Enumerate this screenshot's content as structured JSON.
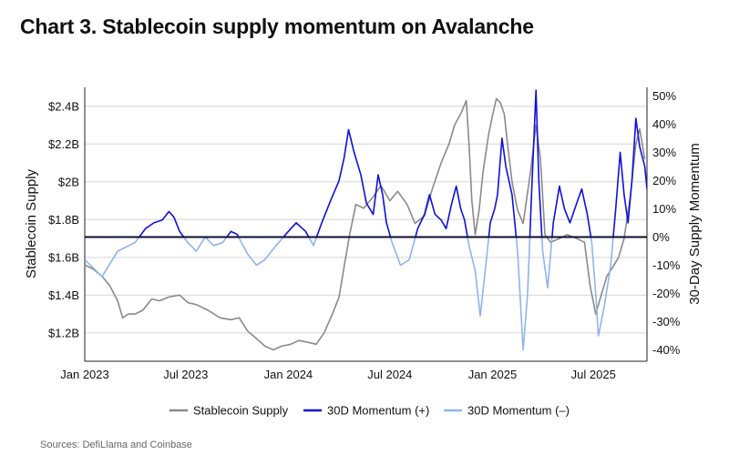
{
  "title": "Chart 3. Stablecoin supply momentum on Avalanche",
  "source": "Sources: DefiLlama and Coinbase",
  "colors": {
    "supply": "#8a8a8a",
    "momentum_pos": "#1010dc",
    "momentum_neg": "#8fb4ef",
    "zero_line": "#0d0d33",
    "grid": "#d6d6d6"
  },
  "chart_data": {
    "type": "line",
    "title": "Chart 3. Stablecoin supply momentum on Avalanche",
    "xlabel": "",
    "ylabel": "Stablecoin Supply",
    "y2label": "30-Day Supply Momentum",
    "x_ticks": [
      "Jan 2023",
      "Jul 2023",
      "Jan 2024",
      "Jul 2024",
      "Jan 2025",
      "Jul 2025"
    ],
    "y_ticks": [
      "$1.2B",
      "$1.4B",
      "$1.6B",
      "$1.8B",
      "$2B",
      "$2.2B",
      "$2.4B"
    ],
    "y2_ticks": [
      "-40%",
      "-30%",
      "-20%",
      "-10%",
      "0%",
      "10%",
      "20%",
      "30%",
      "40%",
      "50%"
    ],
    "x_range": [
      "2023-01-01",
      "2025-10-05"
    ],
    "ylim": [
      1.05,
      2.5
    ],
    "y2lim": [
      -44,
      53
    ],
    "grid": true,
    "legend_position": "bottom",
    "series": [
      {
        "name": "Stablecoin Supply",
        "axis": "left",
        "unit": "$B",
        "points": [
          [
            "2023-01-01",
            1.56
          ],
          [
            "2023-01-15",
            1.54
          ],
          [
            "2023-02-01",
            1.5
          ],
          [
            "2023-02-15",
            1.45
          ],
          [
            "2023-03-01",
            1.37
          ],
          [
            "2023-03-10",
            1.28
          ],
          [
            "2023-03-20",
            1.3
          ],
          [
            "2023-04-01",
            1.3
          ],
          [
            "2023-04-15",
            1.32
          ],
          [
            "2023-05-01",
            1.38
          ],
          [
            "2023-05-15",
            1.37
          ],
          [
            "2023-06-01",
            1.39
          ],
          [
            "2023-06-20",
            1.4
          ],
          [
            "2023-07-05",
            1.36
          ],
          [
            "2023-07-20",
            1.35
          ],
          [
            "2023-08-10",
            1.32
          ],
          [
            "2023-09-01",
            1.28
          ],
          [
            "2023-09-20",
            1.27
          ],
          [
            "2023-10-05",
            1.28
          ],
          [
            "2023-10-20",
            1.21
          ],
          [
            "2023-11-05",
            1.17
          ],
          [
            "2023-11-20",
            1.13
          ],
          [
            "2023-12-05",
            1.11
          ],
          [
            "2023-12-20",
            1.13
          ],
          [
            "2024-01-05",
            1.14
          ],
          [
            "2024-01-20",
            1.16
          ],
          [
            "2024-02-05",
            1.15
          ],
          [
            "2024-02-20",
            1.14
          ],
          [
            "2024-03-05",
            1.2
          ],
          [
            "2024-03-20",
            1.3
          ],
          [
            "2024-04-01",
            1.39
          ],
          [
            "2024-04-10",
            1.55
          ],
          [
            "2024-04-20",
            1.72
          ],
          [
            "2024-05-01",
            1.88
          ],
          [
            "2024-05-15",
            1.86
          ],
          [
            "2024-06-01",
            1.92
          ],
          [
            "2024-06-15",
            1.98
          ],
          [
            "2024-07-01",
            1.9
          ],
          [
            "2024-07-15",
            1.95
          ],
          [
            "2024-08-01",
            1.88
          ],
          [
            "2024-08-15",
            1.78
          ],
          [
            "2024-09-01",
            1.82
          ],
          [
            "2024-09-15",
            1.96
          ],
          [
            "2024-10-01",
            2.1
          ],
          [
            "2024-10-15",
            2.2
          ],
          [
            "2024-10-25",
            2.3
          ],
          [
            "2024-11-05",
            2.36
          ],
          [
            "2024-11-15",
            2.43
          ],
          [
            "2024-11-20",
            2.2
          ],
          [
            "2024-11-25",
            1.9
          ],
          [
            "2024-12-01",
            1.72
          ],
          [
            "2024-12-08",
            1.85
          ],
          [
            "2024-12-15",
            2.05
          ],
          [
            "2024-12-25",
            2.25
          ],
          [
            "2025-01-01",
            2.35
          ],
          [
            "2025-01-08",
            2.44
          ],
          [
            "2025-01-15",
            2.42
          ],
          [
            "2025-01-22",
            2.36
          ],
          [
            "2025-01-28",
            2.2
          ],
          [
            "2025-02-05",
            2.0
          ],
          [
            "2025-02-15",
            1.85
          ],
          [
            "2025-02-25",
            1.78
          ],
          [
            "2025-03-10",
            2.05
          ],
          [
            "2025-03-20",
            2.3
          ],
          [
            "2025-03-28",
            2.12
          ],
          [
            "2025-04-05",
            1.72
          ],
          [
            "2025-04-15",
            1.68
          ],
          [
            "2025-05-01",
            1.7
          ],
          [
            "2025-05-15",
            1.72
          ],
          [
            "2025-06-01",
            1.7
          ],
          [
            "2025-06-15",
            1.68
          ],
          [
            "2025-06-25",
            1.45
          ],
          [
            "2025-07-05",
            1.3
          ],
          [
            "2025-07-15",
            1.4
          ],
          [
            "2025-07-25",
            1.5
          ],
          [
            "2025-08-05",
            1.55
          ],
          [
            "2025-08-15",
            1.6
          ],
          [
            "2025-08-25",
            1.7
          ],
          [
            "2025-09-05",
            1.92
          ],
          [
            "2025-09-15",
            2.2
          ],
          [
            "2025-09-22",
            2.28
          ],
          [
            "2025-10-01",
            2.12
          ]
        ]
      },
      {
        "name": "30D Momentum (+)",
        "axis": "right",
        "unit": "%",
        "points": [
          [
            "2023-01-01",
            -8
          ],
          [
            "2023-02-01",
            -14
          ],
          [
            "2023-03-01",
            -5
          ],
          [
            "2023-04-01",
            -2
          ],
          [
            "2023-04-20",
            3
          ],
          [
            "2023-05-05",
            5
          ],
          [
            "2023-05-20",
            6
          ],
          [
            "2023-06-01",
            9
          ],
          [
            "2023-06-10",
            7
          ],
          [
            "2023-06-20",
            2
          ],
          [
            "2023-07-05",
            -2
          ],
          [
            "2023-07-20",
            -5
          ],
          [
            "2023-08-05",
            0
          ],
          [
            "2023-08-20",
            -3
          ],
          [
            "2023-09-05",
            -2
          ],
          [
            "2023-09-20",
            2
          ],
          [
            "2023-10-01",
            1
          ],
          [
            "2023-10-20",
            -6
          ],
          [
            "2023-11-05",
            -10
          ],
          [
            "2023-11-20",
            -8
          ],
          [
            "2023-12-10",
            -3
          ],
          [
            "2024-01-01",
            2
          ],
          [
            "2024-01-15",
            5
          ],
          [
            "2024-02-01",
            2
          ],
          [
            "2024-02-15",
            -3
          ],
          [
            "2024-03-01",
            5
          ],
          [
            "2024-03-15",
            12
          ],
          [
            "2024-04-01",
            20
          ],
          [
            "2024-04-10",
            28
          ],
          [
            "2024-04-18",
            38
          ],
          [
            "2024-04-28",
            30
          ],
          [
            "2024-05-10",
            22
          ],
          [
            "2024-05-20",
            12
          ],
          [
            "2024-06-01",
            8
          ],
          [
            "2024-06-10",
            22
          ],
          [
            "2024-06-18",
            15
          ],
          [
            "2024-06-25",
            5
          ],
          [
            "2024-07-05",
            -2
          ],
          [
            "2024-07-20",
            -10
          ],
          [
            "2024-08-05",
            -8
          ],
          [
            "2024-08-20",
            3
          ],
          [
            "2024-09-01",
            8
          ],
          [
            "2024-09-10",
            15
          ],
          [
            "2024-09-20",
            8
          ],
          [
            "2024-10-01",
            6
          ],
          [
            "2024-10-10",
            3
          ],
          [
            "2024-10-20",
            12
          ],
          [
            "2024-10-28",
            18
          ],
          [
            "2024-11-05",
            10
          ],
          [
            "2024-11-12",
            6
          ],
          [
            "2024-11-20",
            -3
          ],
          [
            "2024-12-01",
            -12
          ],
          [
            "2024-12-10",
            -28
          ],
          [
            "2024-12-20",
            -10
          ],
          [
            "2024-12-28",
            5
          ],
          [
            "2025-01-05",
            10
          ],
          [
            "2025-01-10",
            15
          ],
          [
            "2025-01-18",
            35
          ],
          [
            "2025-01-25",
            25
          ],
          [
            "2025-02-05",
            15
          ],
          [
            "2025-02-15",
            -5
          ],
          [
            "2025-02-25",
            -40
          ],
          [
            "2025-03-05",
            -20
          ],
          [
            "2025-03-12",
            15
          ],
          [
            "2025-03-20",
            52
          ],
          [
            "2025-03-25",
            20
          ],
          [
            "2025-04-01",
            -5
          ],
          [
            "2025-04-10",
            -18
          ],
          [
            "2025-04-20",
            5
          ],
          [
            "2025-05-01",
            18
          ],
          [
            "2025-05-10",
            10
          ],
          [
            "2025-05-20",
            5
          ],
          [
            "2025-06-01",
            12
          ],
          [
            "2025-06-10",
            17
          ],
          [
            "2025-06-20",
            8
          ],
          [
            "2025-06-28",
            -2
          ],
          [
            "2025-07-05",
            -20
          ],
          [
            "2025-07-10",
            -35
          ],
          [
            "2025-07-20",
            -25
          ],
          [
            "2025-08-01",
            -10
          ],
          [
            "2025-08-10",
            10
          ],
          [
            "2025-08-18",
            30
          ],
          [
            "2025-08-25",
            15
          ],
          [
            "2025-09-01",
            5
          ],
          [
            "2025-09-08",
            20
          ],
          [
            "2025-09-15",
            42
          ],
          [
            "2025-09-22",
            32
          ],
          [
            "2025-10-01",
            25
          ],
          [
            "2025-10-05",
            17
          ]
        ]
      },
      {
        "name": "30D Momentum (–)",
        "axis": "right",
        "unit": "%",
        "note_series": "same momentum line, drawn where values are below 0%"
      }
    ]
  },
  "legend": [
    {
      "label": "Stablecoin Supply",
      "color_key": "supply"
    },
    {
      "label": "30D Momentum (+)",
      "color_key": "momentum_pos"
    },
    {
      "label": "30D Momentum (–)",
      "color_key": "momentum_neg"
    }
  ]
}
